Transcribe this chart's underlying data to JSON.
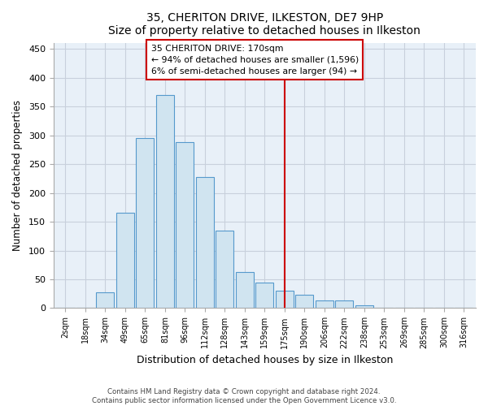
{
  "title": "35, CHERITON DRIVE, ILKESTON, DE7 9HP",
  "subtitle": "Size of property relative to detached houses in Ilkeston",
  "xlabel": "Distribution of detached houses by size in Ilkeston",
  "ylabel": "Number of detached properties",
  "bar_labels": [
    "2sqm",
    "18sqm",
    "34sqm",
    "49sqm",
    "65sqm",
    "81sqm",
    "96sqm",
    "112sqm",
    "128sqm",
    "143sqm",
    "159sqm",
    "175sqm",
    "190sqm",
    "206sqm",
    "222sqm",
    "238sqm",
    "253sqm",
    "269sqm",
    "285sqm",
    "300sqm",
    "316sqm"
  ],
  "bar_values": [
    0,
    0,
    28,
    165,
    295,
    370,
    289,
    228,
    135,
    62,
    44,
    30,
    23,
    13,
    14,
    5,
    0,
    0,
    0,
    0,
    0
  ],
  "bar_color": "#d0e4f0",
  "bar_edge_color": "#5599cc",
  "vline_x": 11,
  "vline_color": "#cc0000",
  "annotation_title": "35 CHERITON DRIVE: 170sqm",
  "annotation_line1": "← 94% of detached houses are smaller (1,596)",
  "annotation_line2": "6% of semi-detached houses are larger (94) →",
  "ylim": [
    0,
    460
  ],
  "yticks": [
    0,
    50,
    100,
    150,
    200,
    250,
    300,
    350,
    400,
    450
  ],
  "footer1": "Contains HM Land Registry data © Crown copyright and database right 2024.",
  "footer2": "Contains public sector information licensed under the Open Government Licence v3.0.",
  "fig_bg_color": "#ffffff",
  "plot_bg_color": "#e8f0f8",
  "grid_color": "#c8d0dc"
}
